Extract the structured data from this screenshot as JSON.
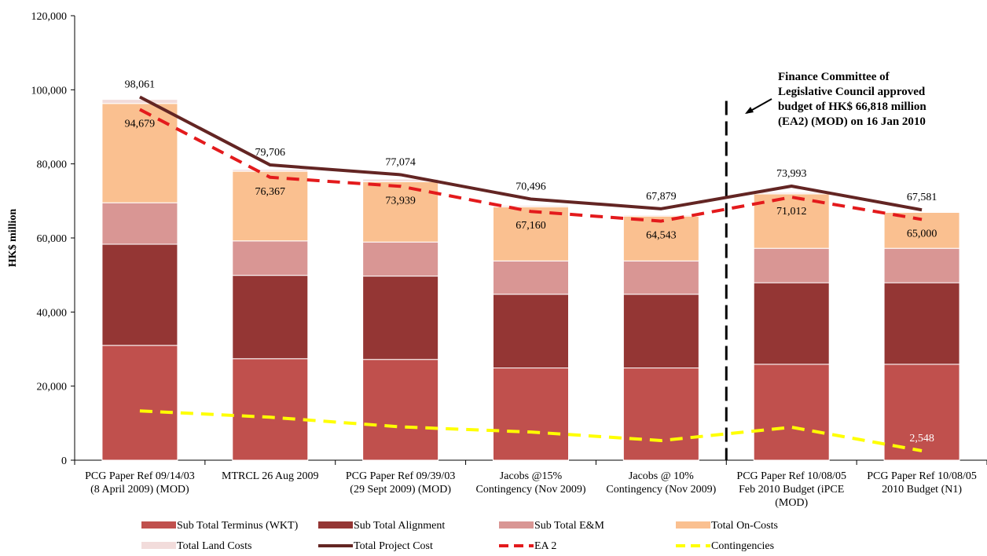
{
  "chart_data": {
    "type": "bar",
    "ylabel": "HK$ million",
    "ylim": [
      0,
      120000
    ],
    "yticks": [
      "0",
      "20,000",
      "40,000",
      "60,000",
      "80,000",
      "100,000",
      "120,000"
    ],
    "categories": [
      [
        "PCG Paper Ref 09/14/03",
        "(8 April 2009) (MOD)"
      ],
      [
        "MTRCL 26 Aug 2009"
      ],
      [
        "PCG Paper Ref 09/39/03",
        "(29 Sept 2009) (MOD)"
      ],
      [
        "Jacobs @15%",
        "Contingency (Nov 2009)"
      ],
      [
        "Jacobs @ 10%",
        "Contingency (Nov 2009)"
      ],
      [
        "PCG Paper Ref 10/08/05",
        "Feb 2010 Budget (iPCE",
        "(MOD)"
      ],
      [
        "PCG Paper Ref 10/08/05",
        "2010 Budget (N1)"
      ]
    ],
    "stacked_series": [
      {
        "name": "Sub Total Terminus (WKT)",
        "color": "#c0504d",
        "values": [
          31000,
          27400,
          27200,
          24900,
          24900,
          25900,
          25900
        ]
      },
      {
        "name": "Sub Total Alignment",
        "color": "#943634",
        "values": [
          27300,
          22500,
          22500,
          19900,
          19900,
          22000,
          22000
        ]
      },
      {
        "name": "Sub Total E&M",
        "color": "#d99694",
        "values": [
          11200,
          9300,
          9200,
          9000,
          9000,
          9300,
          9300
        ]
      },
      {
        "name": "Total On-Costs",
        "color": "#fac090",
        "values": [
          26800,
          18800,
          16300,
          14600,
          12100,
          14700,
          9700
        ]
      },
      {
        "name": "Total Land Costs",
        "color": "#f2dcdb",
        "values": [
          1100,
          500,
          700,
          400,
          300,
          400,
          200
        ]
      }
    ],
    "line_series": [
      {
        "name": "Total Project Cost",
        "color": "#632523",
        "style": "solid",
        "values": [
          98061,
          79706,
          77074,
          70496,
          67879,
          73993,
          67581
        ],
        "labels": [
          "98,061",
          "79,706",
          "77,074",
          "70,496",
          "67,879",
          "73,993",
          "67,581"
        ]
      },
      {
        "name": "EA 2",
        "color": "#e31a1c",
        "style": "dashed",
        "values": [
          94679,
          76367,
          73939,
          67160,
          64543,
          71012,
          65000
        ],
        "labels": [
          "94,679",
          "76,367",
          "73,939",
          "67,160",
          "64,543",
          "71,012",
          "65,000"
        ]
      },
      {
        "name": "Contingencies",
        "color": "#ffff00",
        "style": "dashed",
        "values": [
          13300,
          11600,
          9000,
          7600,
          5300,
          8900,
          2548
        ],
        "last_label": "2,548"
      }
    ],
    "divider": {
      "after_category": 4,
      "style": "dashed"
    },
    "annotation": [
      "Finance Committee of",
      "Legislative Council approved",
      "budget of HK$ 66,818 million",
      "(EA2) (MOD) on 16 Jan 2010"
    ],
    "legend": {
      "position": "bottom",
      "items": [
        {
          "label": "Sub Total Terminus (WKT)",
          "kind": "box",
          "color": "#c0504d"
        },
        {
          "label": "Sub Total Alignment",
          "kind": "box",
          "color": "#943634"
        },
        {
          "label": "Sub Total E&M",
          "kind": "box",
          "color": "#d99694"
        },
        {
          "label": "Total On-Costs",
          "kind": "box",
          "color": "#fac090"
        },
        {
          "label": "Total Land Costs",
          "kind": "box",
          "color": "#f2dcdb"
        },
        {
          "label": "Total Project Cost",
          "kind": "line",
          "color": "#632523"
        },
        {
          "label": "EA 2",
          "kind": "dash",
          "color": "#e31a1c"
        },
        {
          "label": "Contingencies",
          "kind": "dash",
          "color": "#ffff00"
        }
      ]
    },
    "grid": false
  }
}
